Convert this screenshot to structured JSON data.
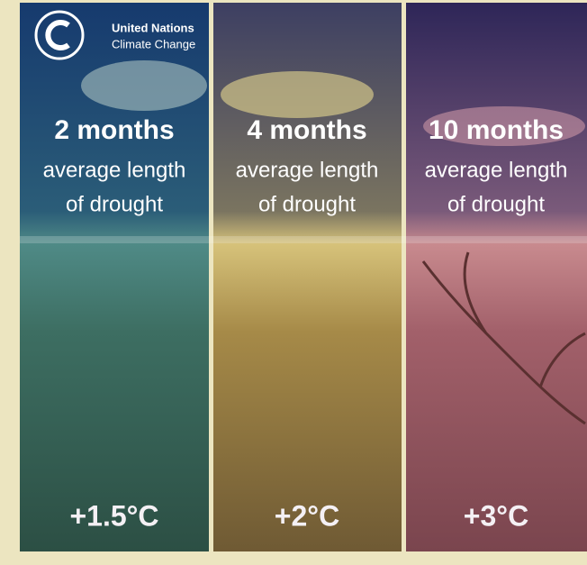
{
  "header": {
    "org_name": "United Nations",
    "org_subtitle": "Climate Change"
  },
  "panels": [
    {
      "headline": "2 months",
      "subtitle_lines": [
        "average length",
        "of drought"
      ],
      "temperature": "+1.5°C"
    },
    {
      "headline": "4 months",
      "subtitle_lines": [
        "average length",
        "of drought"
      ],
      "temperature": "+2°C"
    },
    {
      "headline": "10 months",
      "subtitle_lines": [
        "average length",
        "of drought"
      ],
      "temperature": "+3°C"
    }
  ]
}
